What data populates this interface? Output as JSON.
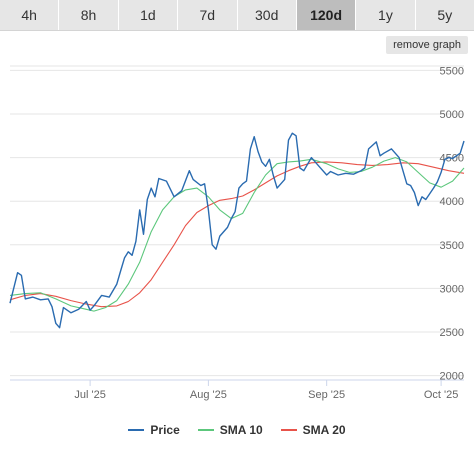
{
  "timeframe_tabs": [
    {
      "label": "4h",
      "active": false
    },
    {
      "label": "8h",
      "active": false
    },
    {
      "label": "1d",
      "active": false
    },
    {
      "label": "7d",
      "active": false
    },
    {
      "label": "30d",
      "active": false
    },
    {
      "label": "120d",
      "active": true
    },
    {
      "label": "1y",
      "active": false
    },
    {
      "label": "5y",
      "active": false
    }
  ],
  "remove_graph_label": "remove graph",
  "colors": {
    "price": "#2a6bb0",
    "sma10": "#5cc77c",
    "sma20": "#e8534a",
    "grid": "#e6e6e6",
    "axis": "#ccd6eb"
  },
  "chart_data": {
    "type": "line",
    "title": "",
    "xlabel": "",
    "ylabel": "",
    "ylim": [
      1950,
      5550
    ],
    "xlim": [
      "2025-06-10",
      "2025-10-07"
    ],
    "yticks": [
      2000,
      2500,
      3000,
      3500,
      4000,
      4500,
      5000,
      5500
    ],
    "xticks": [
      {
        "date": "2025-07-01",
        "label": "Jul '25"
      },
      {
        "date": "2025-08-01",
        "label": "Aug '25"
      },
      {
        "date": "2025-09-01",
        "label": "Sep '25"
      },
      {
        "date": "2025-10-01",
        "label": "Oct '25"
      }
    ],
    "grid": true,
    "legend_position": "bottom",
    "series": [
      {
        "name": "Price",
        "color": "#2a6bb0",
        "points": [
          [
            "2025-06-10",
            2830
          ],
          [
            "2025-06-12",
            3180
          ],
          [
            "2025-06-13",
            3150
          ],
          [
            "2025-06-14",
            2880
          ],
          [
            "2025-06-16",
            2900
          ],
          [
            "2025-06-18",
            2870
          ],
          [
            "2025-06-20",
            2880
          ],
          [
            "2025-06-21",
            2790
          ],
          [
            "2025-06-22",
            2600
          ],
          [
            "2025-06-23",
            2550
          ],
          [
            "2025-06-24",
            2780
          ],
          [
            "2025-06-26",
            2720
          ],
          [
            "2025-06-28",
            2760
          ],
          [
            "2025-06-30",
            2850
          ],
          [
            "2025-07-01",
            2750
          ],
          [
            "2025-07-02",
            2800
          ],
          [
            "2025-07-04",
            2920
          ],
          [
            "2025-07-06",
            2900
          ],
          [
            "2025-07-08",
            3050
          ],
          [
            "2025-07-09",
            3200
          ],
          [
            "2025-07-10",
            3350
          ],
          [
            "2025-07-11",
            3420
          ],
          [
            "2025-07-12",
            3380
          ],
          [
            "2025-07-13",
            3540
          ],
          [
            "2025-07-14",
            3900
          ],
          [
            "2025-07-15",
            3620
          ],
          [
            "2025-07-16",
            4020
          ],
          [
            "2025-07-17",
            4150
          ],
          [
            "2025-07-18",
            4050
          ],
          [
            "2025-07-19",
            4260
          ],
          [
            "2025-07-21",
            4230
          ],
          [
            "2025-07-23",
            4050
          ],
          [
            "2025-07-25",
            4120
          ],
          [
            "2025-07-27",
            4350
          ],
          [
            "2025-07-28",
            4250
          ],
          [
            "2025-07-30",
            4180
          ],
          [
            "2025-07-31",
            4200
          ],
          [
            "2025-08-01",
            3900
          ],
          [
            "2025-08-02",
            3500
          ],
          [
            "2025-08-03",
            3450
          ],
          [
            "2025-08-04",
            3600
          ],
          [
            "2025-08-06",
            3700
          ],
          [
            "2025-08-07",
            3800
          ],
          [
            "2025-08-08",
            3880
          ],
          [
            "2025-08-09",
            4150
          ],
          [
            "2025-08-10",
            4200
          ],
          [
            "2025-08-11",
            4230
          ],
          [
            "2025-08-12",
            4600
          ],
          [
            "2025-08-13",
            4740
          ],
          [
            "2025-08-14",
            4570
          ],
          [
            "2025-08-15",
            4450
          ],
          [
            "2025-08-16",
            4400
          ],
          [
            "2025-08-17",
            4480
          ],
          [
            "2025-08-18",
            4300
          ],
          [
            "2025-08-19",
            4150
          ],
          [
            "2025-08-21",
            4250
          ],
          [
            "2025-08-22",
            4700
          ],
          [
            "2025-08-23",
            4780
          ],
          [
            "2025-08-24",
            4750
          ],
          [
            "2025-08-25",
            4380
          ],
          [
            "2025-08-26",
            4350
          ],
          [
            "2025-08-28",
            4500
          ],
          [
            "2025-08-30",
            4400
          ],
          [
            "2025-09-01",
            4300
          ],
          [
            "2025-09-02",
            4340
          ],
          [
            "2025-09-04",
            4300
          ],
          [
            "2025-09-06",
            4320
          ],
          [
            "2025-09-08",
            4310
          ],
          [
            "2025-09-10",
            4350
          ],
          [
            "2025-09-11",
            4380
          ],
          [
            "2025-09-12",
            4600
          ],
          [
            "2025-09-14",
            4680
          ],
          [
            "2025-09-15",
            4520
          ],
          [
            "2025-09-16",
            4550
          ],
          [
            "2025-09-18",
            4600
          ],
          [
            "2025-09-20",
            4500
          ],
          [
            "2025-09-22",
            4200
          ],
          [
            "2025-09-23",
            4180
          ],
          [
            "2025-09-24",
            4100
          ],
          [
            "2025-09-25",
            3950
          ],
          [
            "2025-09-26",
            4050
          ],
          [
            "2025-09-27",
            4020
          ],
          [
            "2025-09-29",
            4150
          ],
          [
            "2025-09-30",
            4220
          ],
          [
            "2025-10-01",
            4330
          ],
          [
            "2025-10-02",
            4480
          ],
          [
            "2025-10-03",
            4500
          ],
          [
            "2025-10-04",
            4490
          ],
          [
            "2025-10-05",
            4520
          ],
          [
            "2025-10-06",
            4550
          ],
          [
            "2025-10-07",
            4690
          ]
        ]
      },
      {
        "name": "SMA 10",
        "color": "#5cc77c",
        "points": [
          [
            "2025-06-10",
            2920
          ],
          [
            "2025-06-14",
            2940
          ],
          [
            "2025-06-18",
            2950
          ],
          [
            "2025-06-22",
            2880
          ],
          [
            "2025-06-26",
            2800
          ],
          [
            "2025-06-30",
            2760
          ],
          [
            "2025-07-02",
            2740
          ],
          [
            "2025-07-05",
            2780
          ],
          [
            "2025-07-08",
            2860
          ],
          [
            "2025-07-11",
            3050
          ],
          [
            "2025-07-14",
            3300
          ],
          [
            "2025-07-17",
            3650
          ],
          [
            "2025-07-20",
            3900
          ],
          [
            "2025-07-23",
            4050
          ],
          [
            "2025-07-26",
            4130
          ],
          [
            "2025-07-29",
            4150
          ],
          [
            "2025-08-01",
            4050
          ],
          [
            "2025-08-04",
            3900
          ],
          [
            "2025-08-07",
            3800
          ],
          [
            "2025-08-10",
            3860
          ],
          [
            "2025-08-13",
            4100
          ],
          [
            "2025-08-16",
            4300
          ],
          [
            "2025-08-19",
            4430
          ],
          [
            "2025-08-22",
            4450
          ],
          [
            "2025-08-25",
            4460
          ],
          [
            "2025-08-28",
            4480
          ],
          [
            "2025-09-01",
            4430
          ],
          [
            "2025-09-04",
            4370
          ],
          [
            "2025-09-07",
            4330
          ],
          [
            "2025-09-10",
            4340
          ],
          [
            "2025-09-13",
            4390
          ],
          [
            "2025-09-16",
            4460
          ],
          [
            "2025-09-19",
            4500
          ],
          [
            "2025-09-22",
            4450
          ],
          [
            "2025-09-25",
            4330
          ],
          [
            "2025-09-28",
            4210
          ],
          [
            "2025-10-01",
            4160
          ],
          [
            "2025-10-04",
            4230
          ],
          [
            "2025-10-07",
            4380
          ]
        ]
      },
      {
        "name": "SMA 20",
        "color": "#e8534a",
        "points": [
          [
            "2025-06-10",
            2870
          ],
          [
            "2025-06-14",
            2920
          ],
          [
            "2025-06-18",
            2940
          ],
          [
            "2025-06-22",
            2910
          ],
          [
            "2025-06-26",
            2860
          ],
          [
            "2025-06-30",
            2820
          ],
          [
            "2025-07-04",
            2790
          ],
          [
            "2025-07-08",
            2800
          ],
          [
            "2025-07-11",
            2850
          ],
          [
            "2025-07-14",
            2950
          ],
          [
            "2025-07-17",
            3100
          ],
          [
            "2025-07-20",
            3300
          ],
          [
            "2025-07-23",
            3500
          ],
          [
            "2025-07-26",
            3720
          ],
          [
            "2025-07-29",
            3870
          ],
          [
            "2025-08-01",
            3950
          ],
          [
            "2025-08-04",
            4010
          ],
          [
            "2025-08-07",
            4030
          ],
          [
            "2025-08-10",
            4060
          ],
          [
            "2025-08-13",
            4130
          ],
          [
            "2025-08-16",
            4210
          ],
          [
            "2025-08-19",
            4290
          ],
          [
            "2025-08-22",
            4350
          ],
          [
            "2025-08-25",
            4400
          ],
          [
            "2025-08-28",
            4440
          ],
          [
            "2025-09-01",
            4450
          ],
          [
            "2025-09-05",
            4440
          ],
          [
            "2025-09-09",
            4420
          ],
          [
            "2025-09-13",
            4410
          ],
          [
            "2025-09-17",
            4420
          ],
          [
            "2025-09-21",
            4440
          ],
          [
            "2025-09-25",
            4430
          ],
          [
            "2025-09-29",
            4390
          ],
          [
            "2025-10-03",
            4350
          ],
          [
            "2025-10-07",
            4320
          ]
        ]
      }
    ]
  }
}
